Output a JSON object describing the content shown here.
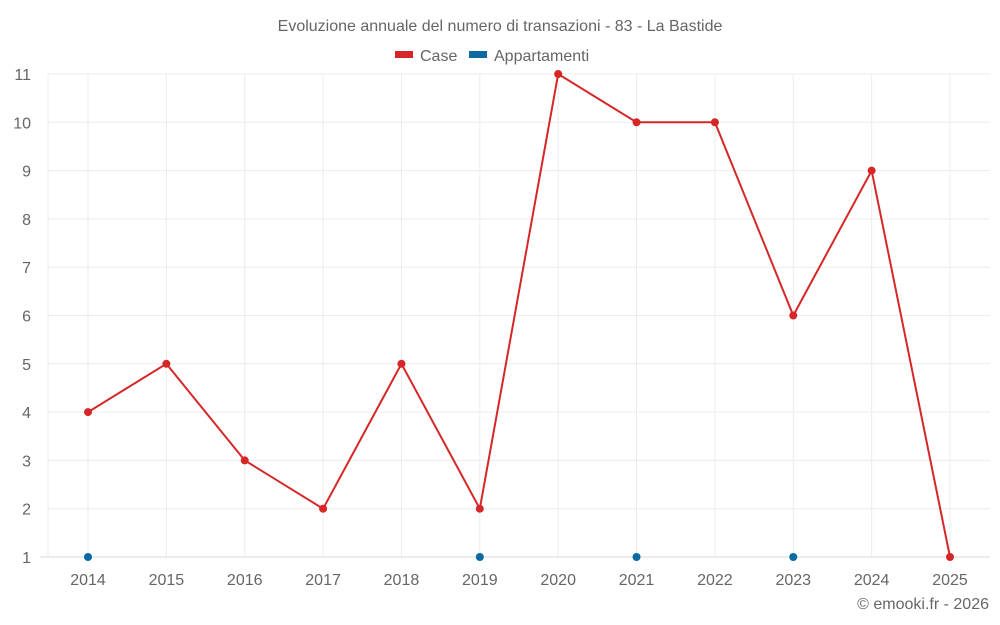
{
  "chart_data": {
    "type": "line",
    "title": "Evoluzione annuale del numero di transazioni - 83 - La Bastide",
    "xlabel": "",
    "ylabel": "",
    "categories": [
      "2014",
      "2015",
      "2016",
      "2017",
      "2018",
      "2019",
      "2020",
      "2021",
      "2022",
      "2023",
      "2024",
      "2025"
    ],
    "series": [
      {
        "name": "Case",
        "color": "#d62728",
        "values": [
          4,
          5,
          3,
          2,
          5,
          2,
          11,
          10,
          10,
          6,
          9,
          1
        ]
      },
      {
        "name": "Appartamenti",
        "color": "#0a6aa1",
        "values": [
          1,
          null,
          null,
          null,
          null,
          1,
          null,
          1,
          null,
          1,
          null,
          null
        ]
      }
    ],
    "ylim": [
      1,
      11
    ],
    "yticks": [
      1,
      2,
      3,
      4,
      5,
      6,
      7,
      8,
      9,
      10,
      11
    ],
    "grid": true,
    "legend_position": "top"
  },
  "credit": "© emooki.fr - 2026"
}
